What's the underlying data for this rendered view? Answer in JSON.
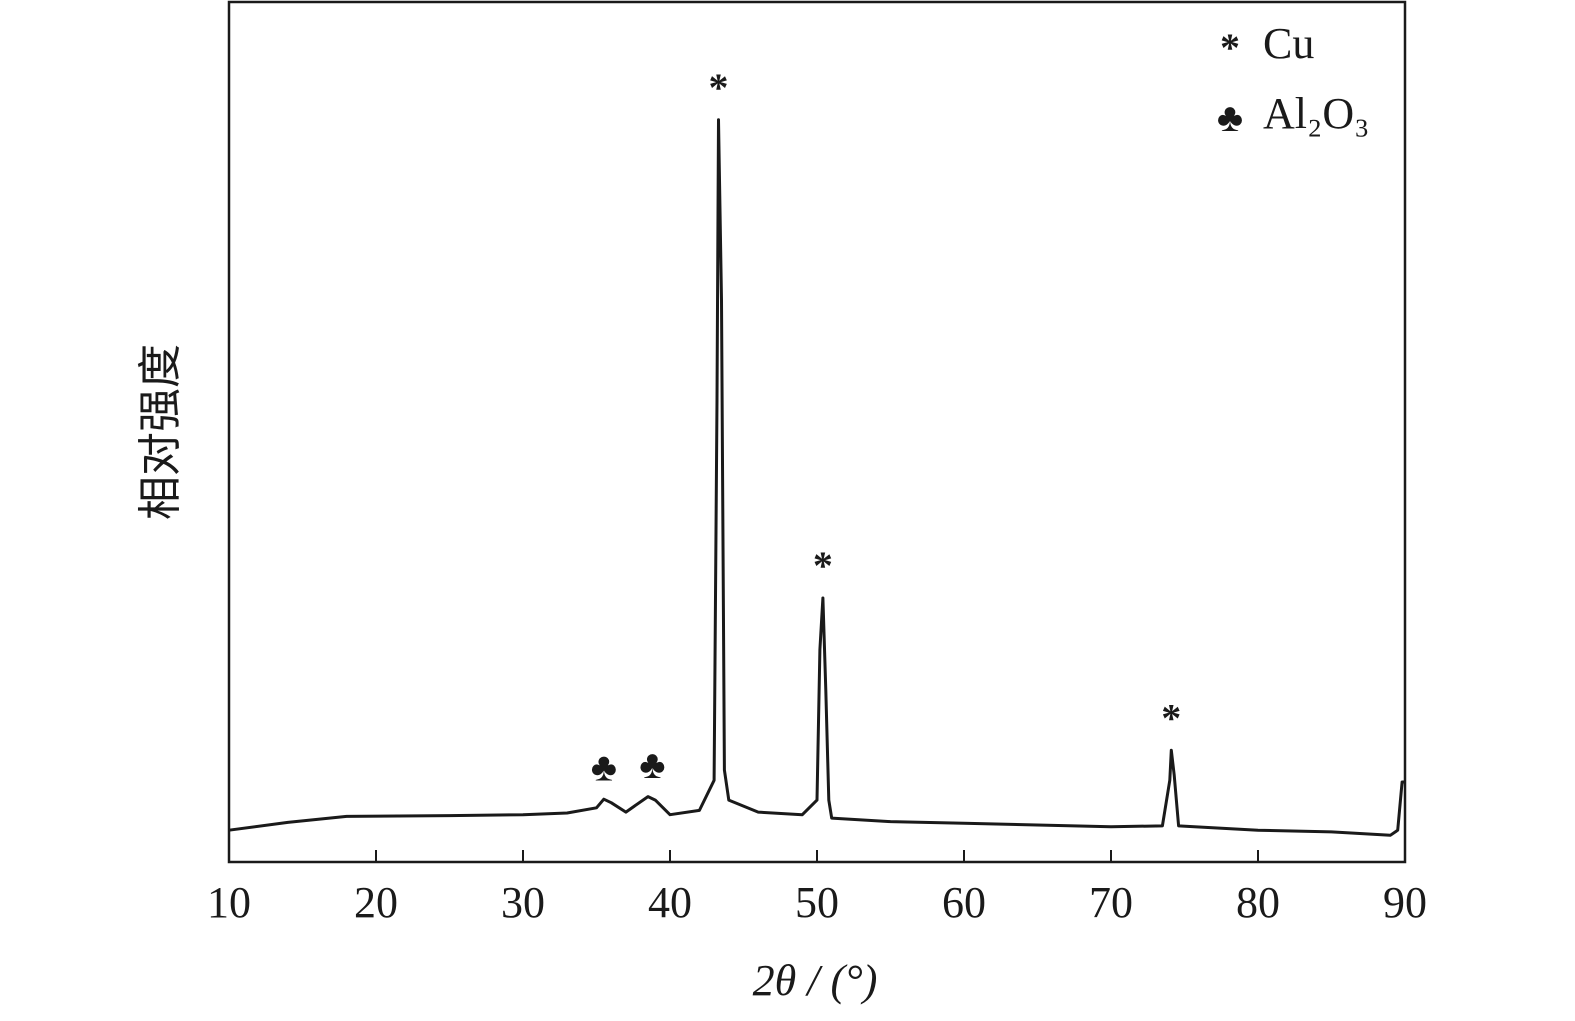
{
  "chart_data": {
    "type": "line",
    "x_label": "2θ / (°)",
    "y_label": "相对强度",
    "x": [
      10,
      14,
      18,
      25,
      30,
      33,
      35,
      35.5,
      36,
      37,
      38.5,
      39,
      40,
      42,
      43,
      43.2,
      43.3,
      43.5,
      43.7,
      44,
      46,
      49,
      50,
      50.2,
      50.4,
      50.6,
      50.8,
      51,
      55,
      60,
      70,
      73.5,
      74,
      74.1,
      74.3,
      74.6,
      80,
      85,
      89,
      89.5,
      89.8,
      90
    ],
    "values": [
      3.7,
      4.6,
      5.3,
      5.4,
      5.5,
      5.7,
      6.3,
      7.3,
      6.9,
      5.8,
      7.6,
      7.2,
      5.5,
      6.0,
      9.5,
      53.7,
      86.3,
      65.3,
      10.7,
      7.2,
      5.8,
      5.5,
      7.2,
      24.7,
      30.7,
      20.0,
      7.2,
      5.1,
      4.7,
      4.5,
      4.1,
      4.2,
      9.5,
      13.0,
      10.1,
      4.2,
      3.7,
      3.5,
      3.1,
      3.7,
      9.3,
      9.3
    ],
    "color": "#1a1a1a",
    "xlim": [
      10,
      90
    ],
    "ylim": [
      0,
      100
    ],
    "xticks": [
      10,
      20,
      30,
      40,
      50,
      60,
      70,
      80,
      90
    ],
    "annotations": [
      {
        "text": "*",
        "x": 43.3,
        "y": 86.3
      },
      {
        "text": "*",
        "x": 50.4,
        "y": 30.7
      },
      {
        "text": "*",
        "x": 74.1,
        "y": 13.0
      },
      {
        "text": "♣",
        "x": 35.5,
        "y": 7.3
      },
      {
        "text": "♣",
        "x": 38.8,
        "y": 7.6
      }
    ],
    "legend": [
      {
        "symbol": "*",
        "name": "Cu"
      },
      {
        "symbol": "♣",
        "name": "Al₂O₃"
      }
    ]
  }
}
